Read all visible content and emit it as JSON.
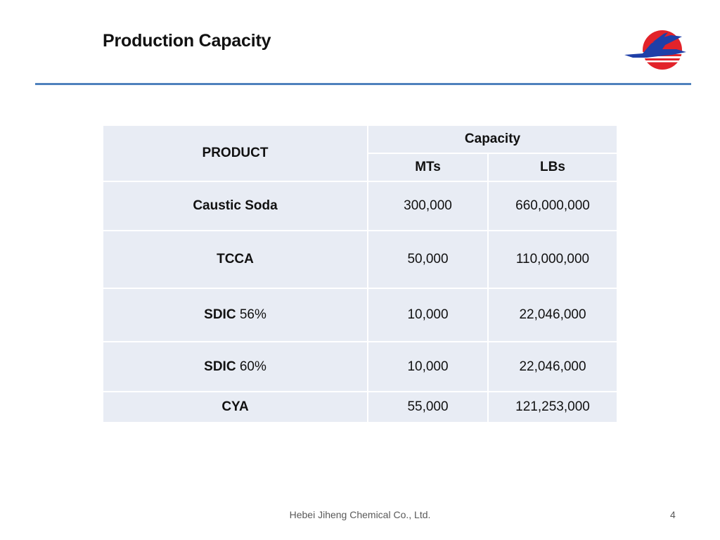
{
  "slide": {
    "title": "Production Capacity",
    "footer": "Hebei Jiheng Chemical Co., Ltd.",
    "page_number": "4"
  },
  "logo": {
    "icon": "company-logo",
    "colors": {
      "red": "#e2232a",
      "blue": "#1f3fa8"
    }
  },
  "colors": {
    "rule": "#4f81bd",
    "cell_bg": "#e8ecf4"
  },
  "table": {
    "headers": {
      "product": "PRODUCT",
      "capacity": "Capacity",
      "mts": "MTs",
      "lbs": "LBs"
    },
    "rows": [
      {
        "product": "Caustic Soda",
        "suffix": "",
        "mts": "300,000",
        "lbs": "660,000,000"
      },
      {
        "product": "TCCA",
        "suffix": "",
        "mts": "50,000",
        "lbs": "110,000,000"
      },
      {
        "product": "SDIC",
        "suffix": " 56%",
        "mts": "10,000",
        "lbs": "22,046,000"
      },
      {
        "product": "SDIC",
        "suffix": " 60%",
        "mts": "10,000",
        "lbs": "22,046,000"
      },
      {
        "product": "CYA",
        "suffix": "",
        "mts": "55,000",
        "lbs": "121,253,000"
      }
    ]
  }
}
